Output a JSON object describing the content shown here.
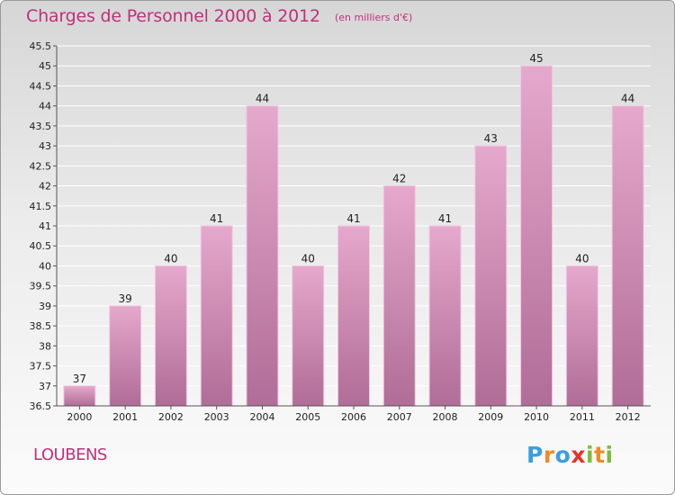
{
  "title": "Charges de Personnel 2000 à 2012",
  "unit_note": "(en milliers d'€)",
  "commune": "LOUBENS",
  "logo": {
    "text": "Proxiti",
    "letters": [
      {
        "ch": "P",
        "color": "#3aa0dc"
      },
      {
        "ch": "r",
        "color": "#f08a24"
      },
      {
        "ch": "o",
        "color": "#3aa0dc"
      },
      {
        "ch": "x",
        "color": "#e8302a"
      },
      {
        "ch": "i",
        "color": "#7cbc3a"
      },
      {
        "ch": "t",
        "color": "#f08a24"
      },
      {
        "ch": "i",
        "color": "#7cbc3a"
      }
    ]
  },
  "colors": {
    "bar_top": "#e6a8cc",
    "bar_bottom": "#b06d97",
    "bar_edge": "#f2c9e0",
    "text_accent": "#c0307c"
  },
  "chart_data": {
    "type": "bar",
    "title": "Charges de Personnel 2000 à 2012",
    "subtitle": "(en milliers d'€)",
    "xlabel": "",
    "ylabel": "",
    "categories": [
      "2000",
      "2001",
      "2002",
      "2003",
      "2004",
      "2005",
      "2006",
      "2007",
      "2008",
      "2009",
      "2010",
      "2011",
      "2012"
    ],
    "values": [
      37,
      39,
      40,
      41,
      44,
      40,
      41,
      42,
      41,
      43,
      45,
      40,
      44
    ],
    "data_labels": [
      "37",
      "39",
      "40",
      "41",
      "44",
      "40",
      "41",
      "42",
      "41",
      "43",
      "45",
      "40",
      "44"
    ],
    "ylim": [
      36.5,
      45.5
    ],
    "yticks": [
      36.5,
      37,
      37.5,
      38,
      38.5,
      39,
      39.5,
      40,
      40.5,
      41,
      41.5,
      42,
      42.5,
      43,
      43.5,
      44,
      44.5,
      45,
      45.5
    ],
    "ytick_labels": [
      "36.5",
      "37",
      "37.5",
      "38",
      "38.5",
      "39",
      "39.5",
      "40",
      "40.5",
      "41",
      "41.5",
      "42",
      "42.5",
      "43",
      "43.5",
      "44",
      "44.5",
      "45",
      "45.5"
    ],
    "grid": true
  }
}
